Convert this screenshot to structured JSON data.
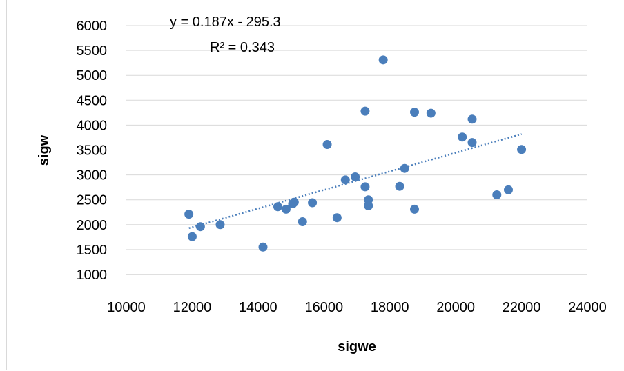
{
  "chart_data": {
    "type": "scatter",
    "title": "",
    "xlabel": "sigwe",
    "ylabel": "sigw",
    "xlim": [
      10000,
      24000
    ],
    "ylim": [
      1000,
      6000
    ],
    "x_ticks": [
      10000,
      12000,
      14000,
      16000,
      18000,
      20000,
      22000,
      24000
    ],
    "y_ticks": [
      1000,
      1500,
      2000,
      2500,
      3000,
      3500,
      4000,
      4500,
      5000,
      5500,
      6000
    ],
    "grid": "horizontal",
    "legend": "none",
    "marker_color": "#4a7ebb",
    "trendline_color": "#4a7ebb",
    "trendline": {
      "type": "linear",
      "slope": 0.187,
      "intercept": -295.3,
      "x_range": [
        11900,
        22000
      ]
    },
    "annotations": [
      "y = 0.187x - 295.3",
      "R² = 0.343"
    ],
    "points": [
      {
        "x": 11900,
        "y": 2210
      },
      {
        "x": 12000,
        "y": 1760
      },
      {
        "x": 12250,
        "y": 1960
      },
      {
        "x": 12850,
        "y": 2000
      },
      {
        "x": 14150,
        "y": 1550
      },
      {
        "x": 14600,
        "y": 2360
      },
      {
        "x": 14850,
        "y": 2310
      },
      {
        "x": 15050,
        "y": 2420
      },
      {
        "x": 15100,
        "y": 2450
      },
      {
        "x": 15350,
        "y": 2060
      },
      {
        "x": 15650,
        "y": 2440
      },
      {
        "x": 16100,
        "y": 3610
      },
      {
        "x": 16400,
        "y": 2140
      },
      {
        "x": 16650,
        "y": 2900
      },
      {
        "x": 16950,
        "y": 2960
      },
      {
        "x": 17250,
        "y": 2760
      },
      {
        "x": 17250,
        "y": 4280
      },
      {
        "x": 17350,
        "y": 2500
      },
      {
        "x": 17350,
        "y": 2380
      },
      {
        "x": 17800,
        "y": 5310
      },
      {
        "x": 18300,
        "y": 2770
      },
      {
        "x": 18450,
        "y": 3130
      },
      {
        "x": 18750,
        "y": 4260
      },
      {
        "x": 18750,
        "y": 2310
      },
      {
        "x": 19250,
        "y": 4240
      },
      {
        "x": 20200,
        "y": 3760
      },
      {
        "x": 20500,
        "y": 4120
      },
      {
        "x": 20500,
        "y": 3650
      },
      {
        "x": 21250,
        "y": 2600
      },
      {
        "x": 21600,
        "y": 2700
      },
      {
        "x": 22000,
        "y": 3510
      }
    ]
  }
}
